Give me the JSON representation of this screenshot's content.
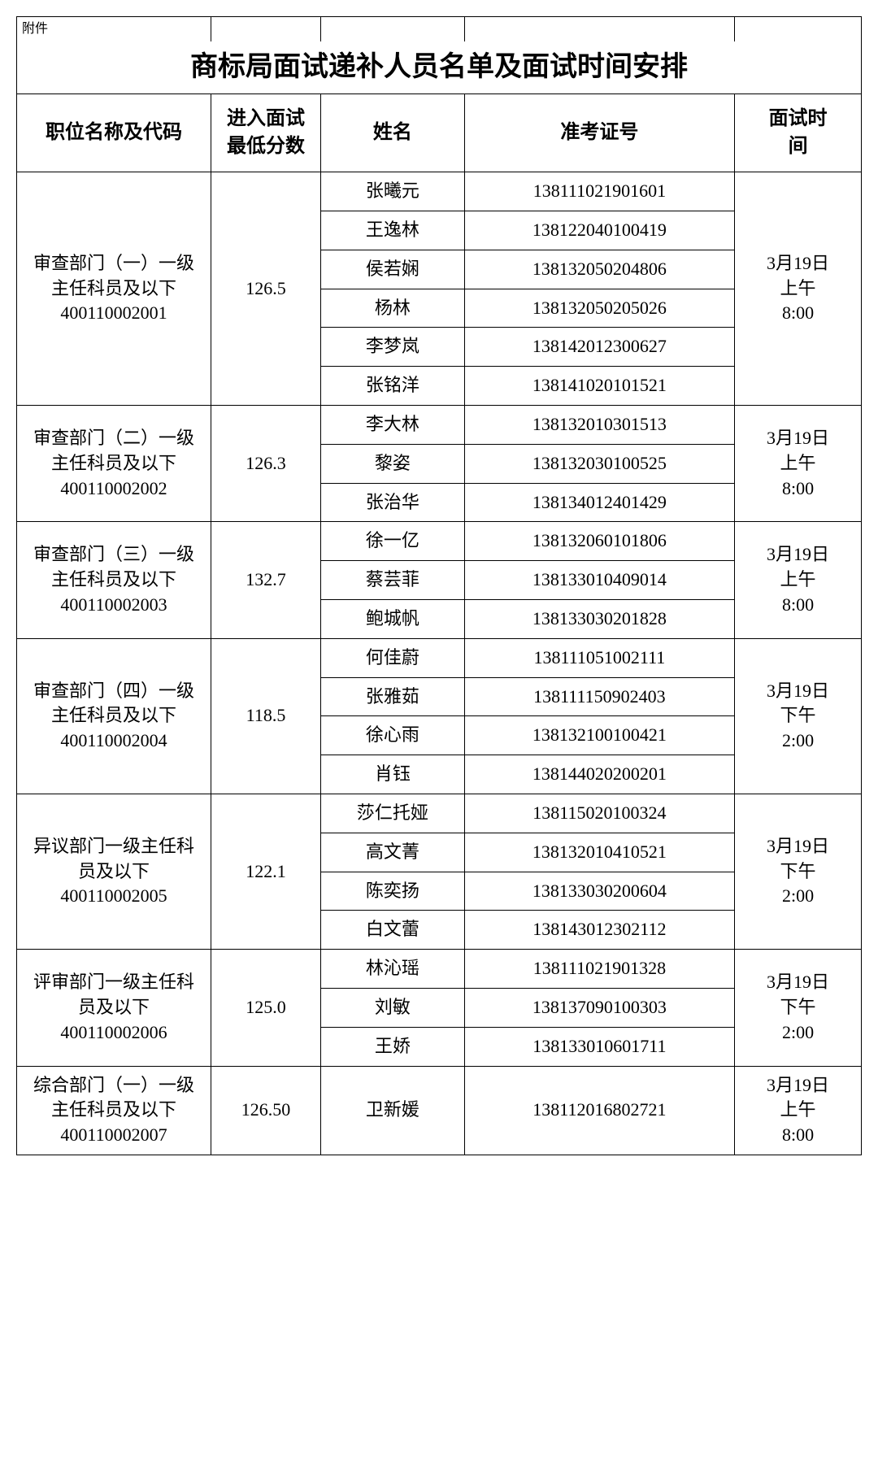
{
  "attachment_label": "附件",
  "title": "商标局面试递补人员名单及面试时间安排",
  "headers": {
    "position": "职位名称及代码",
    "score": "进入面试\n最低分数",
    "name": "姓名",
    "exam_no": "准考证号",
    "time": "面试时\n间"
  },
  "groups": [
    {
      "position": "审查部门（一）一级\n主任科员及以下\n400110002001",
      "score": "126.5",
      "time": "3月19日\n上午\n8:00",
      "candidates": [
        {
          "name": "张曦元",
          "exam_no": "138111021901601"
        },
        {
          "name": "王逸林",
          "exam_no": "138122040100419"
        },
        {
          "name": "侯若娴",
          "exam_no": "138132050204806"
        },
        {
          "name": "杨林",
          "exam_no": "138132050205026"
        },
        {
          "name": "李梦岚",
          "exam_no": "138142012300627"
        },
        {
          "name": "张铭洋",
          "exam_no": "138141020101521"
        }
      ]
    },
    {
      "position": "审查部门（二）一级\n主任科员及以下\n400110002002",
      "score": "126.3",
      "time": "3月19日\n上午\n8:00",
      "candidates": [
        {
          "name": "李大林",
          "exam_no": "138132010301513"
        },
        {
          "name": "黎姿",
          "exam_no": "138132030100525"
        },
        {
          "name": "张治华",
          "exam_no": "138134012401429"
        }
      ]
    },
    {
      "position": "审查部门（三）一级\n主任科员及以下\n400110002003",
      "score": "132.7",
      "time": "3月19日\n上午\n8:00",
      "candidates": [
        {
          "name": "徐一亿",
          "exam_no": "138132060101806"
        },
        {
          "name": "蔡芸菲",
          "exam_no": "138133010409014"
        },
        {
          "name": "鲍城帆",
          "exam_no": "138133030201828"
        }
      ]
    },
    {
      "position": "审查部门（四）一级\n主任科员及以下\n400110002004",
      "score": "118.5",
      "time": "3月19日\n下午\n2:00",
      "candidates": [
        {
          "name": "何佳蔚",
          "exam_no": "138111051002111"
        },
        {
          "name": "张雅茹",
          "exam_no": "138111150902403"
        },
        {
          "name": "徐心雨",
          "exam_no": "138132100100421"
        },
        {
          "name": "肖钰",
          "exam_no": "138144020200201"
        }
      ]
    },
    {
      "position": "异议部门一级主任科\n员及以下\n400110002005",
      "score": "122.1",
      "time": "3月19日\n下午\n2:00",
      "candidates": [
        {
          "name": "莎仁托娅",
          "exam_no": "138115020100324"
        },
        {
          "name": "高文菁",
          "exam_no": "138132010410521"
        },
        {
          "name": "陈奕扬",
          "exam_no": "138133030200604"
        },
        {
          "name": "白文蕾",
          "exam_no": "138143012302112"
        }
      ]
    },
    {
      "position": "评审部门一级主任科\n员及以下\n400110002006",
      "score": "125.0",
      "time": "3月19日\n下午\n2:00",
      "candidates": [
        {
          "name": "林沁瑶",
          "exam_no": "138111021901328"
        },
        {
          "name": "刘敏",
          "exam_no": "138137090100303"
        },
        {
          "name": "王娇",
          "exam_no": "138133010601711"
        }
      ]
    },
    {
      "position": "综合部门（一）一级\n主任科员及以下\n400110002007",
      "score": "126.50",
      "time": "3月19日\n上午\n8:00",
      "candidates": [
        {
          "name": "卫新媛",
          "exam_no": "138112016802721"
        }
      ]
    }
  ]
}
